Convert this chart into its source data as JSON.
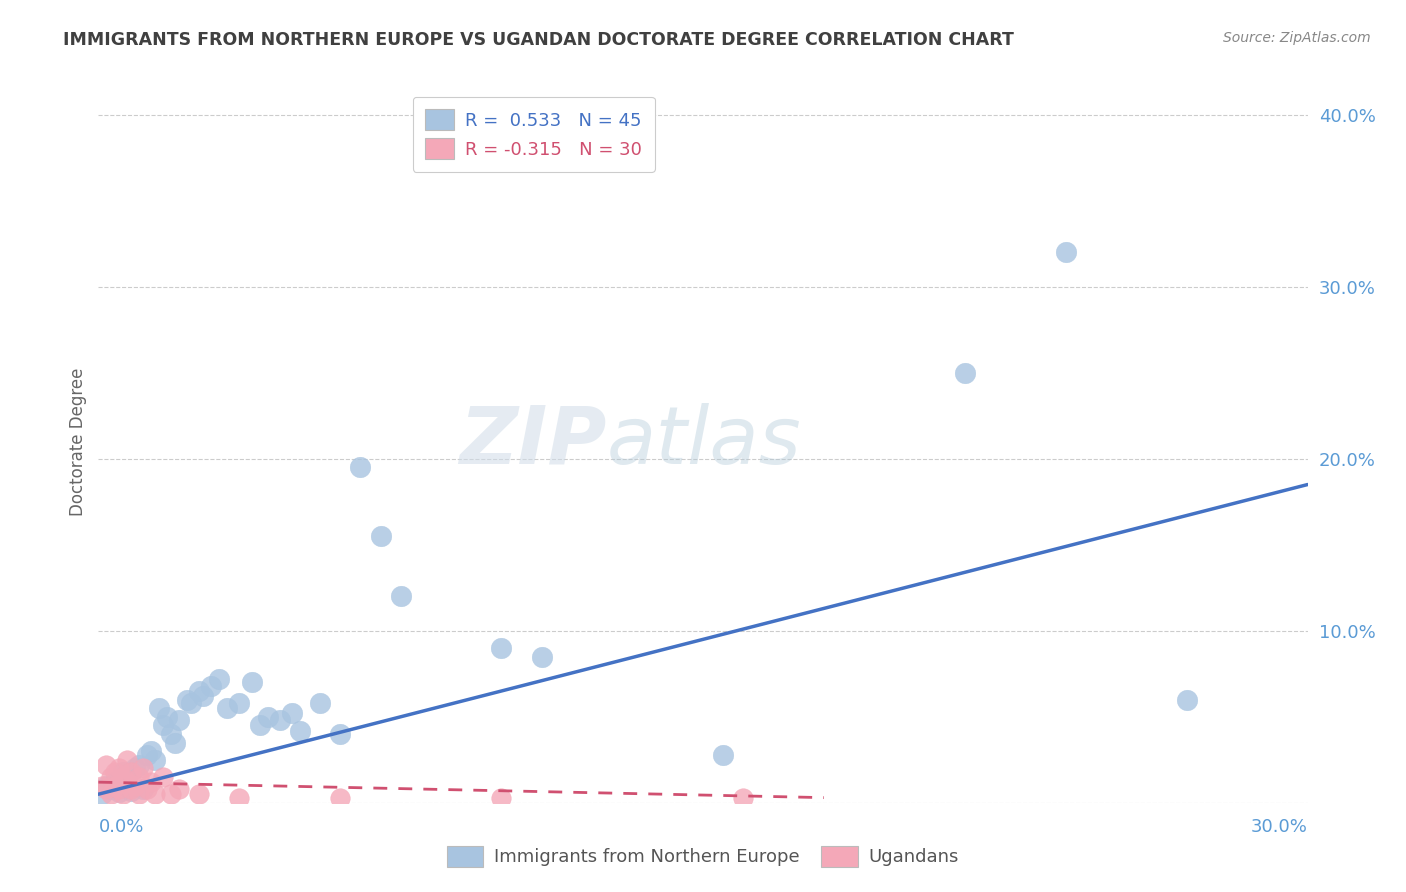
{
  "title": "IMMIGRANTS FROM NORTHERN EUROPE VS UGANDAN DOCTORATE DEGREE CORRELATION CHART",
  "source": "Source: ZipAtlas.com",
  "ylabel": "Doctorate Degree",
  "yticks": [
    0.0,
    0.1,
    0.2,
    0.3,
    0.4
  ],
  "ytick_labels": [
    "",
    "10.0%",
    "20.0%",
    "30.0%",
    "40.0%"
  ],
  "xlim": [
    0.0,
    0.3
  ],
  "ylim": [
    0.0,
    0.42
  ],
  "r_blue": 0.533,
  "n_blue": 45,
  "r_pink": -0.315,
  "n_pink": 30,
  "blue_color": "#a8c4e0",
  "pink_color": "#f4a8b8",
  "blue_line_color": "#4472c4",
  "pink_line_color": "#d05070",
  "title_color": "#404040",
  "source_color": "#888888",
  "axis_label_color": "#5b9bd5",
  "watermark_zip": "ZIP",
  "watermark_atlas": "atlas",
  "blue_scatter": [
    [
      0.001,
      0.005
    ],
    [
      0.002,
      0.01
    ],
    [
      0.003,
      0.008
    ],
    [
      0.004,
      0.012
    ],
    [
      0.005,
      0.006
    ],
    [
      0.006,
      0.018
    ],
    [
      0.007,
      0.015
    ],
    [
      0.008,
      0.007
    ],
    [
      0.009,
      0.02
    ],
    [
      0.01,
      0.022
    ],
    [
      0.011,
      0.008
    ],
    [
      0.012,
      0.028
    ],
    [
      0.013,
      0.03
    ],
    [
      0.014,
      0.025
    ],
    [
      0.015,
      0.055
    ],
    [
      0.016,
      0.045
    ],
    [
      0.017,
      0.05
    ],
    [
      0.018,
      0.04
    ],
    [
      0.019,
      0.035
    ],
    [
      0.02,
      0.048
    ],
    [
      0.022,
      0.06
    ],
    [
      0.023,
      0.058
    ],
    [
      0.025,
      0.065
    ],
    [
      0.026,
      0.062
    ],
    [
      0.028,
      0.068
    ],
    [
      0.03,
      0.072
    ],
    [
      0.032,
      0.055
    ],
    [
      0.035,
      0.058
    ],
    [
      0.038,
      0.07
    ],
    [
      0.04,
      0.045
    ],
    [
      0.042,
      0.05
    ],
    [
      0.045,
      0.048
    ],
    [
      0.048,
      0.052
    ],
    [
      0.05,
      0.042
    ],
    [
      0.055,
      0.058
    ],
    [
      0.06,
      0.04
    ],
    [
      0.065,
      0.195
    ],
    [
      0.07,
      0.155
    ],
    [
      0.075,
      0.12
    ],
    [
      0.1,
      0.09
    ],
    [
      0.11,
      0.085
    ],
    [
      0.155,
      0.028
    ],
    [
      0.215,
      0.25
    ],
    [
      0.24,
      0.32
    ],
    [
      0.27,
      0.06
    ]
  ],
  "pink_scatter": [
    [
      0.001,
      0.01
    ],
    [
      0.002,
      0.022
    ],
    [
      0.002,
      0.008
    ],
    [
      0.003,
      0.015
    ],
    [
      0.003,
      0.005
    ],
    [
      0.004,
      0.018
    ],
    [
      0.004,
      0.01
    ],
    [
      0.005,
      0.02
    ],
    [
      0.005,
      0.008
    ],
    [
      0.006,
      0.015
    ],
    [
      0.006,
      0.005
    ],
    [
      0.007,
      0.012
    ],
    [
      0.007,
      0.025
    ],
    [
      0.008,
      0.008
    ],
    [
      0.008,
      0.018
    ],
    [
      0.009,
      0.01
    ],
    [
      0.01,
      0.015
    ],
    [
      0.01,
      0.005
    ],
    [
      0.011,
      0.02
    ],
    [
      0.012,
      0.008
    ],
    [
      0.013,
      0.012
    ],
    [
      0.014,
      0.005
    ],
    [
      0.016,
      0.015
    ],
    [
      0.018,
      0.005
    ],
    [
      0.02,
      0.008
    ],
    [
      0.025,
      0.005
    ],
    [
      0.035,
      0.003
    ],
    [
      0.06,
      0.003
    ],
    [
      0.1,
      0.003
    ],
    [
      0.16,
      0.003
    ]
  ],
  "blue_line": [
    [
      0.0,
      0.005
    ],
    [
      0.3,
      0.185
    ]
  ],
  "pink_line": [
    [
      0.0,
      0.012
    ],
    [
      0.18,
      0.003
    ]
  ],
  "background_color": "#ffffff",
  "grid_color": "#cccccc",
  "legend_blue_label": "Immigrants from Northern Europe",
  "legend_pink_label": "Ugandans"
}
